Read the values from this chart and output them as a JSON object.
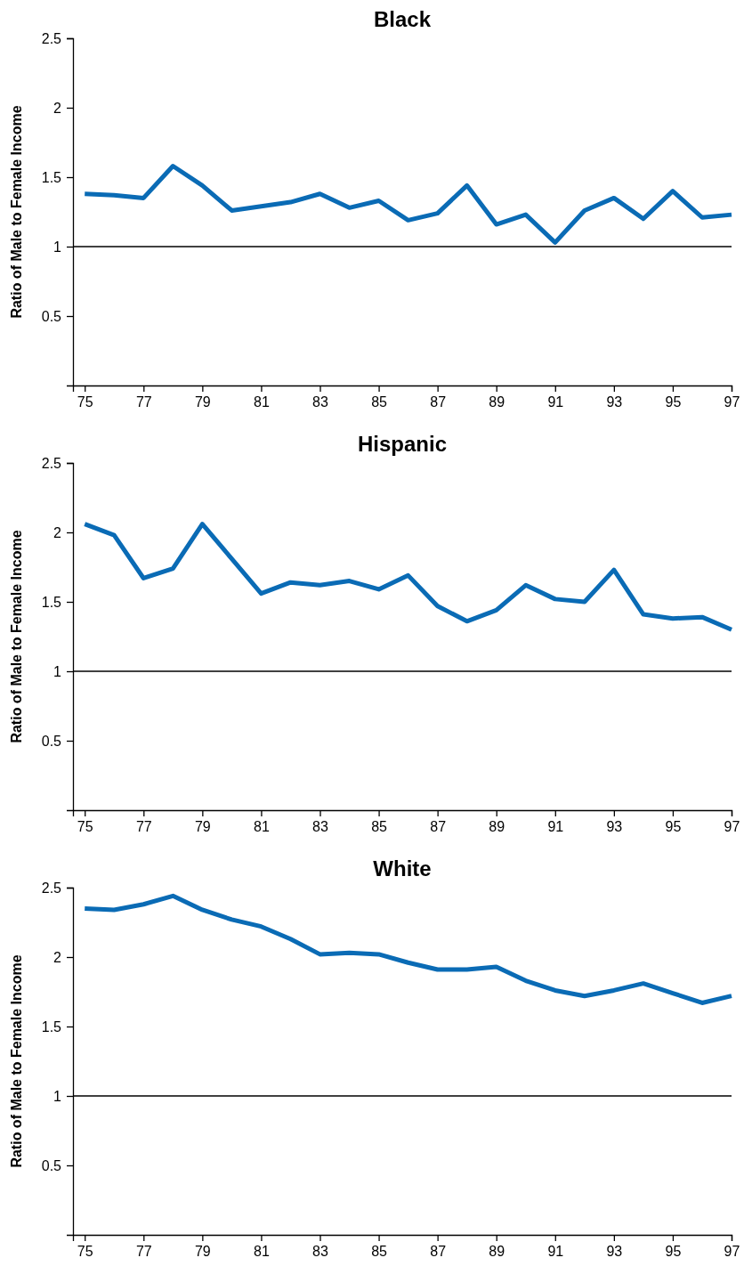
{
  "chart_data": [
    {
      "type": "line",
      "title": "Black",
      "ylabel": "Ratio of Male to Female Income",
      "x": [
        75,
        76,
        77,
        78,
        79,
        80,
        81,
        82,
        83,
        84,
        85,
        86,
        87,
        88,
        89,
        90,
        91,
        92,
        93,
        94,
        95,
        96,
        97
      ],
      "series": [
        {
          "color": "#0a6bb5",
          "values": [
            1.38,
            1.37,
            1.35,
            1.58,
            1.44,
            1.26,
            1.29,
            1.32,
            1.38,
            1.28,
            1.33,
            1.19,
            1.24,
            1.44,
            1.16,
            1.23,
            1.03,
            1.26,
            1.35,
            1.2,
            1.4,
            1.21,
            1.23
          ]
        }
      ],
      "xlim": [
        74.6,
        97
      ],
      "xticks": [
        75,
        77,
        79,
        81,
        83,
        85,
        87,
        89,
        91,
        93,
        95,
        97
      ],
      "ylim": [
        0,
        2.5
      ],
      "yticks": [
        0.5,
        1,
        1.5,
        2,
        2.5
      ],
      "ref_lines": [
        {
          "axis": "y",
          "value": 1,
          "color": "#000000"
        }
      ],
      "marker": "none",
      "line_style": "solid"
    },
    {
      "type": "line",
      "title": "Hispanic",
      "ylabel": "Ratio of Male to Female Income",
      "x": [
        75,
        76,
        77,
        78,
        79,
        80,
        81,
        82,
        83,
        84,
        85,
        86,
        87,
        88,
        89,
        90,
        91,
        92,
        93,
        94,
        95,
        96,
        97
      ],
      "series": [
        {
          "color": "#0a6bb5",
          "values": [
            2.06,
            1.98,
            1.67,
            1.74,
            2.06,
            1.81,
            1.56,
            1.64,
            1.62,
            1.65,
            1.59,
            1.69,
            1.47,
            1.36,
            1.44,
            1.62,
            1.52,
            1.5,
            1.73,
            1.41,
            1.38,
            1.39,
            1.3
          ]
        }
      ],
      "xlim": [
        74.6,
        97
      ],
      "xticks": [
        75,
        77,
        79,
        81,
        83,
        85,
        87,
        89,
        91,
        93,
        95,
        97
      ],
      "ylim": [
        0,
        2.5
      ],
      "yticks": [
        0.5,
        1,
        1.5,
        2,
        2.5
      ],
      "ref_lines": [
        {
          "axis": "y",
          "value": 1,
          "color": "#000000"
        }
      ],
      "marker": "none",
      "line_style": "solid"
    },
    {
      "type": "line",
      "title": "White",
      "ylabel": "Ratio of Male to Female Income",
      "x": [
        75,
        76,
        77,
        78,
        79,
        80,
        81,
        82,
        83,
        84,
        85,
        86,
        87,
        88,
        89,
        90,
        91,
        92,
        93,
        94,
        95,
        96,
        97
      ],
      "series": [
        {
          "color": "#0a6bb5",
          "values": [
            2.35,
            2.34,
            2.38,
            2.44,
            2.34,
            2.27,
            2.22,
            2.13,
            2.02,
            2.03,
            2.02,
            1.96,
            1.91,
            1.91,
            1.93,
            1.83,
            1.76,
            1.72,
            1.76,
            1.81,
            1.74,
            1.67,
            1.72
          ]
        }
      ],
      "xlim": [
        74.6,
        97
      ],
      "xticks": [
        75,
        77,
        79,
        81,
        83,
        85,
        87,
        89,
        91,
        93,
        95,
        97
      ],
      "ylim": [
        0,
        2.5
      ],
      "yticks": [
        0.5,
        1,
        1.5,
        2,
        2.5
      ],
      "ref_lines": [
        {
          "axis": "y",
          "value": 1,
          "color": "#000000"
        }
      ],
      "marker": "none",
      "line_style": "solid"
    }
  ]
}
